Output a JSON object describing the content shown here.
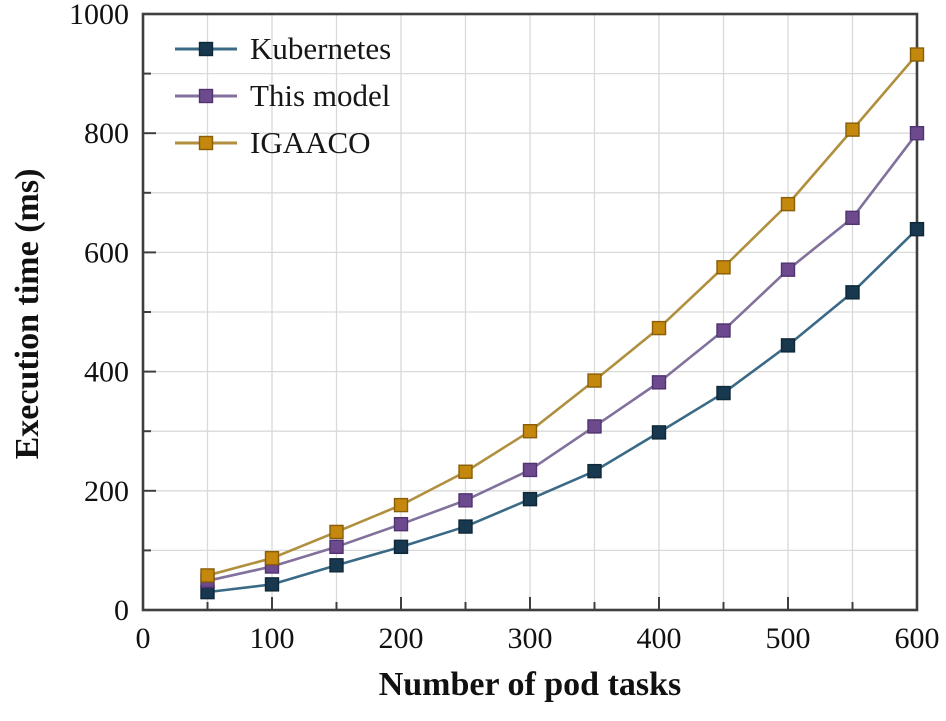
{
  "chart_data": {
    "type": "line",
    "title": "",
    "xlabel": "Number of pod tasks",
    "ylabel": "Execution time (ms)",
    "x": [
      50,
      100,
      150,
      200,
      250,
      300,
      350,
      400,
      450,
      500,
      550,
      600
    ],
    "xlim": [
      0,
      600
    ],
    "ylim": [
      0,
      1000
    ],
    "xticks": [
      0,
      100,
      200,
      300,
      400,
      500,
      600
    ],
    "yticks": [
      0,
      200,
      400,
      600,
      800,
      1000
    ],
    "x_minor_step": 50,
    "y_minor_step": 100,
    "grid": {
      "on": true,
      "color": "#d9d9d9",
      "vertical_every": 50,
      "horizontal_every": 100
    },
    "frame_color": "#3f3f3f",
    "legend_position": "top-left-inside",
    "series": [
      {
        "name": "Kubernetes",
        "marker": "square",
        "line_color": "#3b6a87",
        "marker_color": "#17384e",
        "marker_edge": "#0f2837",
        "values": [
          30,
          43,
          75,
          106,
          140,
          186,
          233,
          298,
          364,
          444,
          533,
          639
        ]
      },
      {
        "name": "This model",
        "marker": "square",
        "line_color": "#81719c",
        "marker_color": "#6d4a8e",
        "marker_edge": "#503370",
        "values": [
          49,
          73,
          106,
          144,
          184,
          235,
          308,
          382,
          469,
          571,
          658,
          800
        ]
      },
      {
        "name": "IGAACO",
        "marker": "square",
        "line_color": "#b08f3e",
        "marker_color": "#c4880c",
        "marker_edge": "#8a5e08",
        "values": [
          58,
          87,
          131,
          176,
          232,
          300,
          385,
          473,
          575,
          681,
          806,
          932
        ]
      }
    ]
  }
}
